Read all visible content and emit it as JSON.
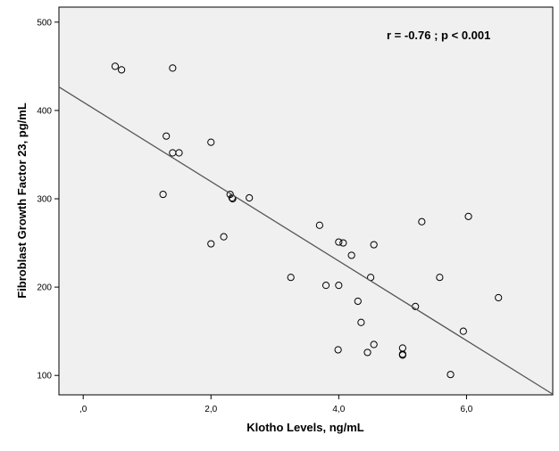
{
  "chart_data": {
    "type": "scatter",
    "title": "",
    "xlabel": "Klotho Levels, ng/mL",
    "ylabel": "Fibroblast Growth Factor 23, pg/mL",
    "annotation": "r = -0.76 ; p < 0.001",
    "xlim": [
      -0.38,
      7.35
    ],
    "ylim": [
      78,
      517
    ],
    "x_ticks": [
      0,
      2,
      4,
      6
    ],
    "x_tick_labels": [
      ",0",
      "2,0",
      "4,0",
      "6,0"
    ],
    "y_ticks": [
      100,
      200,
      300,
      400,
      500
    ],
    "y_tick_labels": [
      "100",
      "200",
      "300",
      "400",
      "500"
    ],
    "grid": false,
    "plot_background": "#f0f0f0",
    "marker": "open-circle",
    "fit_line": {
      "slope": -45.0,
      "intercept": 409.5
    },
    "points": [
      {
        "x": 0.5,
        "y": 450
      },
      {
        "x": 0.6,
        "y": 446
      },
      {
        "x": 1.4,
        "y": 448
      },
      {
        "x": 1.3,
        "y": 371
      },
      {
        "x": 1.4,
        "y": 352
      },
      {
        "x": 1.5,
        "y": 352
      },
      {
        "x": 2.0,
        "y": 364
      },
      {
        "x": 1.25,
        "y": 305
      },
      {
        "x": 2.3,
        "y": 305
      },
      {
        "x": 2.33,
        "y": 301
      },
      {
        "x": 2.34,
        "y": 300
      },
      {
        "x": 2.6,
        "y": 301
      },
      {
        "x": 2.0,
        "y": 249
      },
      {
        "x": 2.2,
        "y": 257
      },
      {
        "x": 3.25,
        "y": 211
      },
      {
        "x": 3.7,
        "y": 270
      },
      {
        "x": 3.8,
        "y": 202
      },
      {
        "x": 4.0,
        "y": 251
      },
      {
        "x": 4.07,
        "y": 250
      },
      {
        "x": 4.2,
        "y": 236
      },
      {
        "x": 4.55,
        "y": 248
      },
      {
        "x": 4.0,
        "y": 202
      },
      {
        "x": 4.3,
        "y": 184
      },
      {
        "x": 4.5,
        "y": 211
      },
      {
        "x": 4.35,
        "y": 160
      },
      {
        "x": 3.99,
        "y": 129
      },
      {
        "x": 4.45,
        "y": 126
      },
      {
        "x": 4.55,
        "y": 135
      },
      {
        "x": 5.0,
        "y": 131
      },
      {
        "x": 5.0,
        "y": 124
      },
      {
        "x": 5.0,
        "y": 123
      },
      {
        "x": 5.2,
        "y": 178
      },
      {
        "x": 5.3,
        "y": 274
      },
      {
        "x": 5.58,
        "y": 211
      },
      {
        "x": 6.03,
        "y": 280
      },
      {
        "x": 6.5,
        "y": 188
      },
      {
        "x": 5.95,
        "y": 150
      },
      {
        "x": 5.75,
        "y": 101
      }
    ]
  }
}
